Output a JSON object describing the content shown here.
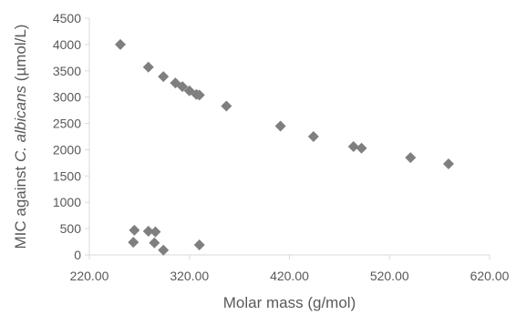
{
  "chart_data": {
    "type": "scatter",
    "xlabel": "Molar mass (g/mol)",
    "ylabel_parts": [
      "MIC against ",
      "C. albicans",
      " (µmol/L)"
    ],
    "xlim": [
      220,
      620
    ],
    "ylim": [
      0,
      4500
    ],
    "x_ticks": [
      {
        "value": 220,
        "label": "220.00"
      },
      {
        "value": 320,
        "label": "320.00"
      },
      {
        "value": 420,
        "label": "420.00"
      },
      {
        "value": 520,
        "label": "520.00"
      },
      {
        "value": 620,
        "label": "620.00"
      }
    ],
    "y_ticks": [
      {
        "value": 0,
        "label": "0"
      },
      {
        "value": 500,
        "label": "500"
      },
      {
        "value": 1000,
        "label": "1000"
      },
      {
        "value": 1500,
        "label": "1500"
      },
      {
        "value": 2000,
        "label": "2000"
      },
      {
        "value": 2500,
        "label": "2500"
      },
      {
        "value": 3000,
        "label": "3000"
      },
      {
        "value": 3500,
        "label": "3500"
      },
      {
        "value": 4000,
        "label": "4000"
      },
      {
        "value": 4500,
        "label": "4500"
      }
    ],
    "grid": false,
    "marker": "diamond",
    "marker_color": "#7f7f7f",
    "axis_color": "#d9d9d9",
    "points": [
      {
        "x": 251,
        "y": 4000
      },
      {
        "x": 279,
        "y": 3570
      },
      {
        "x": 294,
        "y": 3390
      },
      {
        "x": 306,
        "y": 3270
      },
      {
        "x": 313,
        "y": 3200
      },
      {
        "x": 320,
        "y": 3120
      },
      {
        "x": 327,
        "y": 3050
      },
      {
        "x": 330,
        "y": 3040
      },
      {
        "x": 357,
        "y": 2830
      },
      {
        "x": 411,
        "y": 2450
      },
      {
        "x": 444,
        "y": 2250
      },
      {
        "x": 484,
        "y": 2060
      },
      {
        "x": 492,
        "y": 2030
      },
      {
        "x": 541,
        "y": 1850
      },
      {
        "x": 579,
        "y": 1730
      },
      {
        "x": 265,
        "y": 470
      },
      {
        "x": 279,
        "y": 450
      },
      {
        "x": 286,
        "y": 440
      },
      {
        "x": 264,
        "y": 240
      },
      {
        "x": 285,
        "y": 230
      },
      {
        "x": 294,
        "y": 90
      },
      {
        "x": 330,
        "y": 190
      }
    ]
  }
}
